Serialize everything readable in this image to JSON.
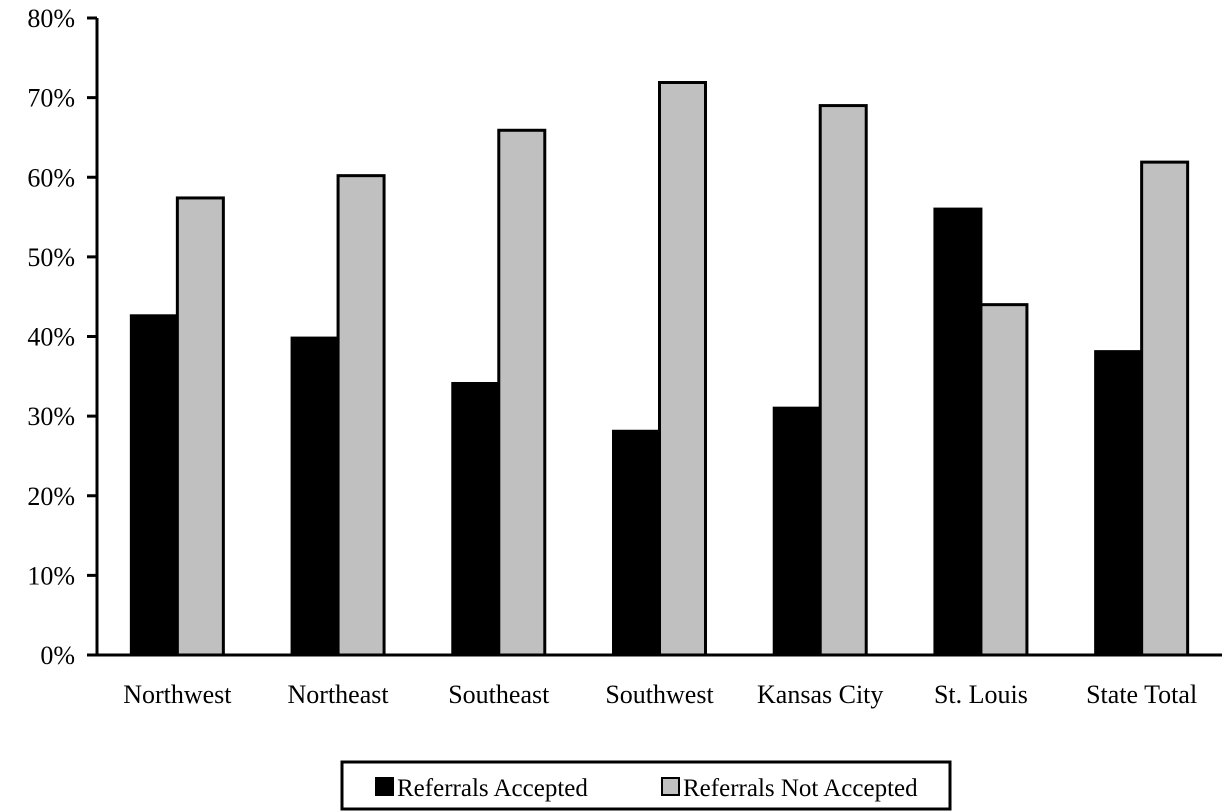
{
  "chart_data": {
    "type": "bar",
    "categories": [
      "Northwest",
      "Northeast",
      "Southeast",
      "Southwest",
      "Kansas City",
      "St. Louis",
      "State Total"
    ],
    "series": [
      {
        "name": "Referrals Accepted",
        "values": [
          42.6,
          39.8,
          34.1,
          28.1,
          31.0,
          56.0,
          38.1
        ],
        "color": "#000000"
      },
      {
        "name": "Referrals Not Accepted",
        "values": [
          57.4,
          60.2,
          65.9,
          71.9,
          69.0,
          44.0,
          61.9
        ],
        "color": "#c0c0c0"
      }
    ],
    "ylim": [
      0,
      80
    ],
    "yticks": [
      0,
      10,
      20,
      30,
      40,
      50,
      60,
      70,
      80
    ],
    "ytick_labels": [
      "0%",
      "10%",
      "20%",
      "30%",
      "40%",
      "50%",
      "60%",
      "70%",
      "80%"
    ],
    "grid": false,
    "legend": "bottom"
  }
}
